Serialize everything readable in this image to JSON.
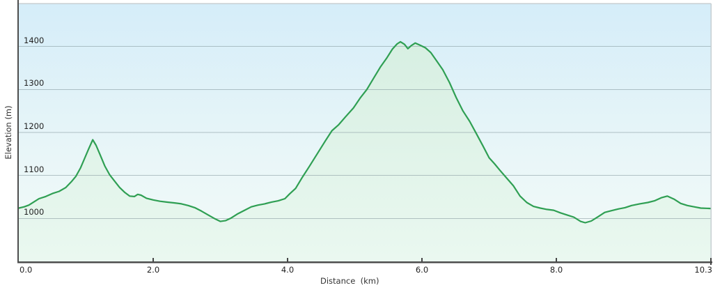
{
  "chart_data": {
    "type": "area",
    "title": "",
    "xlabel": "Distance  (km)",
    "ylabel": "Elevation (m)",
    "xlim": [
      0,
      10.3
    ],
    "ylim": [
      900,
      1500
    ],
    "grid": "horizontal-only",
    "legend": "none",
    "x_ticks": [
      {
        "value": 0.0,
        "label": "0.0"
      },
      {
        "value": 2.0,
        "label": "2.0"
      },
      {
        "value": 4.0,
        "label": "4.0"
      },
      {
        "value": 6.0,
        "label": "6.0"
      },
      {
        "value": 8.0,
        "label": "8.0"
      },
      {
        "value": 10.3,
        "label": "10.3"
      }
    ],
    "y_ticks": [
      {
        "value": 1000,
        "label": "1000"
      },
      {
        "value": 1100,
        "label": "1100"
      },
      {
        "value": 1200,
        "label": "1200"
      },
      {
        "value": 1300,
        "label": "1300"
      },
      {
        "value": 1400,
        "label": "1400"
      }
    ],
    "series": [
      {
        "name": "elevation-profile",
        "units": {
          "x": "km",
          "y": "m"
        },
        "points": [
          [
            0.0,
            1024
          ],
          [
            0.08,
            1027
          ],
          [
            0.15,
            1031
          ],
          [
            0.22,
            1038
          ],
          [
            0.3,
            1046
          ],
          [
            0.4,
            1051
          ],
          [
            0.5,
            1058
          ],
          [
            0.6,
            1063
          ],
          [
            0.7,
            1072
          ],
          [
            0.78,
            1085
          ],
          [
            0.85,
            1098
          ],
          [
            0.92,
            1118
          ],
          [
            0.98,
            1140
          ],
          [
            1.04,
            1162
          ],
          [
            1.1,
            1183
          ],
          [
            1.15,
            1170
          ],
          [
            1.21,
            1148
          ],
          [
            1.28,
            1122
          ],
          [
            1.35,
            1102
          ],
          [
            1.42,
            1088
          ],
          [
            1.5,
            1072
          ],
          [
            1.58,
            1060
          ],
          [
            1.65,
            1052
          ],
          [
            1.72,
            1051
          ],
          [
            1.77,
            1056
          ],
          [
            1.82,
            1054
          ],
          [
            1.9,
            1047
          ],
          [
            2.0,
            1043
          ],
          [
            2.1,
            1040
          ],
          [
            2.2,
            1038
          ],
          [
            2.32,
            1036
          ],
          [
            2.42,
            1034
          ],
          [
            2.52,
            1030
          ],
          [
            2.62,
            1025
          ],
          [
            2.72,
            1017
          ],
          [
            2.82,
            1008
          ],
          [
            2.92,
            999
          ],
          [
            3.0,
            993
          ],
          [
            3.08,
            995
          ],
          [
            3.16,
            1001
          ],
          [
            3.26,
            1011
          ],
          [
            3.36,
            1019
          ],
          [
            3.46,
            1027
          ],
          [
            3.56,
            1031
          ],
          [
            3.66,
            1034
          ],
          [
            3.76,
            1038
          ],
          [
            3.86,
            1041
          ],
          [
            3.96,
            1046
          ],
          [
            4.03,
            1057
          ],
          [
            4.12,
            1070
          ],
          [
            4.22,
            1096
          ],
          [
            4.32,
            1120
          ],
          [
            4.44,
            1150
          ],
          [
            4.56,
            1180
          ],
          [
            4.66,
            1204
          ],
          [
            4.76,
            1218
          ],
          [
            4.86,
            1236
          ],
          [
            4.98,
            1257
          ],
          [
            5.08,
            1280
          ],
          [
            5.18,
            1300
          ],
          [
            5.28,
            1326
          ],
          [
            5.38,
            1352
          ],
          [
            5.48,
            1374
          ],
          [
            5.56,
            1394
          ],
          [
            5.63,
            1406
          ],
          [
            5.68,
            1411
          ],
          [
            5.74,
            1405
          ],
          [
            5.79,
            1395
          ],
          [
            5.84,
            1402
          ],
          [
            5.9,
            1408
          ],
          [
            5.97,
            1403
          ],
          [
            6.05,
            1397
          ],
          [
            6.13,
            1386
          ],
          [
            6.22,
            1366
          ],
          [
            6.31,
            1346
          ],
          [
            6.41,
            1316
          ],
          [
            6.51,
            1281
          ],
          [
            6.61,
            1250
          ],
          [
            6.71,
            1226
          ],
          [
            6.81,
            1197
          ],
          [
            6.91,
            1168
          ],
          [
            7.0,
            1141
          ],
          [
            7.08,
            1127
          ],
          [
            7.16,
            1112
          ],
          [
            7.26,
            1094
          ],
          [
            7.36,
            1076
          ],
          [
            7.46,
            1052
          ],
          [
            7.56,
            1037
          ],
          [
            7.66,
            1028
          ],
          [
            7.76,
            1024
          ],
          [
            7.86,
            1021
          ],
          [
            7.96,
            1019
          ],
          [
            8.06,
            1013
          ],
          [
            8.16,
            1008
          ],
          [
            8.26,
            1003
          ],
          [
            8.36,
            993
          ],
          [
            8.43,
            990
          ],
          [
            8.52,
            994
          ],
          [
            8.62,
            1004
          ],
          [
            8.72,
            1014
          ],
          [
            8.82,
            1018
          ],
          [
            8.92,
            1022
          ],
          [
            9.02,
            1025
          ],
          [
            9.12,
            1030
          ],
          [
            9.24,
            1034
          ],
          [
            9.36,
            1037
          ],
          [
            9.46,
            1041
          ],
          [
            9.56,
            1048
          ],
          [
            9.65,
            1052
          ],
          [
            9.75,
            1045
          ],
          [
            9.85,
            1035
          ],
          [
            9.95,
            1030
          ],
          [
            10.05,
            1027
          ],
          [
            10.15,
            1024
          ],
          [
            10.3,
            1023
          ]
        ]
      }
    ]
  },
  "colors": {
    "line": "#2f9f53",
    "fill_top": "#d7efe2",
    "fill_bottom": "#eaf8f0",
    "bg_top": "#d5edf9",
    "bg_mid": "#e9f6f8",
    "bg_bottom": "#f3fbf8",
    "gridline": "rgba(130,150,155,0.55)",
    "axis_dark": "#4d4d4d",
    "frame_light": "#c6ced2",
    "tick": "#444444",
    "label_text": "#222222"
  }
}
